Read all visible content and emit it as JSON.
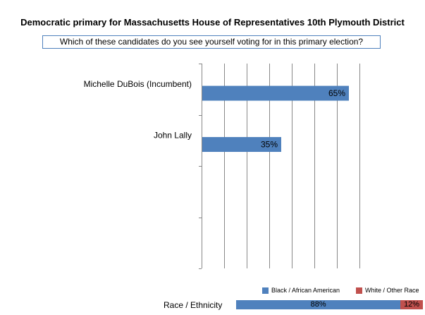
{
  "title": "Democratic primary  for Massachusetts  House of Representatives 10th  Plymouth District",
  "question": "Which of these candidates do you see yourself voting for in this primary election?",
  "chart_data": {
    "type": "bar",
    "orientation": "horizontal",
    "categories": [
      "Michelle DuBois (Incumbent)",
      "John Lally"
    ],
    "values": [
      65,
      35
    ],
    "value_labels": [
      "65%",
      "35%"
    ],
    "xlim": [
      0,
      70
    ],
    "grid": true,
    "bar_color": "#4f81bd"
  },
  "breakdown": {
    "label": "Race / Ethnicity",
    "legend": [
      {
        "name": "Black / African American",
        "color": "#4f81bd"
      },
      {
        "name": "White / Other Race",
        "color": "#c0504d"
      }
    ],
    "segments": [
      {
        "name": "Black / African American",
        "value": 88,
        "label": "88%",
        "color": "#4f81bd"
      },
      {
        "name": "White / Other Race",
        "value": 12,
        "label": "12%",
        "color": "#c0504d"
      }
    ]
  }
}
